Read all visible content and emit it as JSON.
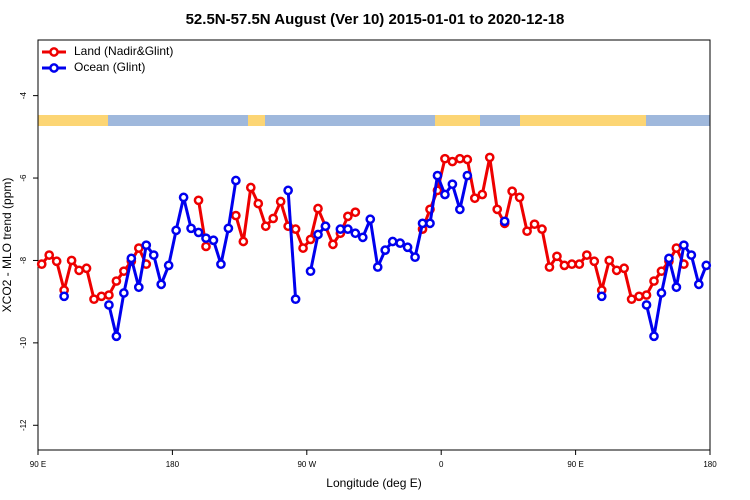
{
  "chart_data": {
    "type": "line",
    "title": "52.5N-57.5N August (Ver 10)   2015-01-01 to 2020-12-18",
    "x_label": "Longitude (deg E)",
    "y_label": "XCO2 - MLO trend (ppm)",
    "legend": "top-left",
    "xlim": [
      90,
      540
    ],
    "xticks": [
      {
        "value": 90,
        "label": "90 E"
      },
      180,
      {
        "value": 270,
        "label": "90 W"
      },
      {
        "value": 360,
        "label": "0"
      },
      {
        "value": 450,
        "label": "90 E"
      },
      {
        "value": 540,
        "label": "180"
      }
    ],
    "ylim": [
      -12.6,
      -2.65
    ],
    "yticks": [
      -4,
      -6,
      -8,
      -10,
      -12
    ],
    "x": [
      92.5,
      97.5,
      102.5,
      107.5,
      112.5,
      117.5,
      122.5,
      127.5,
      132.5,
      137.5,
      142.5,
      147.5,
      152.5,
      157.5,
      162.5,
      167.5,
      172.5,
      177.5,
      182.5,
      187.5,
      192.5,
      197.5,
      202.5,
      207.5,
      212.5,
      217.5,
      222.5,
      227.5,
      232.5,
      237.5,
      242.5,
      247.5,
      252.5,
      257.5,
      262.5,
      267.5,
      272.5,
      277.5,
      282.5,
      287.5,
      292.5,
      297.5,
      302.5,
      307.5,
      312.5,
      317.5,
      322.5,
      327.5,
      332.5,
      337.5,
      342.5,
      347.5,
      352.5,
      357.5,
      362.5,
      367.5,
      372.5,
      377.5,
      382.5,
      387.5,
      392.5,
      397.5,
      402.5,
      407.5,
      412.5,
      417.5,
      422.5,
      427.5,
      432.5,
      437.5,
      442.5,
      447.5,
      452.5,
      457.5,
      462.5,
      467.5,
      472.5,
      477.5,
      482.5,
      487.5,
      492.5,
      497.5,
      502.5,
      507.5,
      512.5,
      517.5,
      522.5,
      527.5,
      532.5,
      537.5
    ],
    "series": [
      {
        "name": "Land (Nadir&Glint)",
        "color": "#ee0000",
        "values": [
          -8.09,
          -7.87,
          -8.02,
          -8.72,
          -8.0,
          -8.24,
          -8.19,
          -8.94,
          -8.87,
          -8.84,
          -8.5,
          -8.26,
          -8.02,
          -7.7,
          -8.09,
          null,
          null,
          null,
          null,
          null,
          null,
          -6.54,
          -7.66,
          null,
          null,
          null,
          -6.91,
          -7.54,
          -6.23,
          -6.62,
          -7.17,
          -6.98,
          -6.57,
          -7.17,
          -7.24,
          -7.7,
          -7.49,
          -6.74,
          -7.17,
          -7.61,
          -7.34,
          -6.93,
          -6.83,
          null,
          null,
          null,
          null,
          null,
          null,
          null,
          null,
          -7.24,
          -6.76,
          -6.3,
          -5.53,
          -5.6,
          -5.53,
          -5.55,
          -6.49,
          -6.4,
          -5.5,
          -6.76,
          -7.1,
          -6.32,
          -6.47,
          -7.29,
          -7.12,
          -7.24,
          -8.16,
          -7.9,
          -8.12,
          -8.09,
          -8.09,
          -7.87,
          -8.02,
          -8.72,
          -8.0,
          -8.24,
          -8.19,
          -8.94,
          -8.87,
          -8.84,
          -8.5,
          -8.26,
          -8.02,
          -7.7,
          -8.09,
          null,
          null,
          null
        ]
      },
      {
        "name": "Ocean (Glint)",
        "color": "#0000ee",
        "values": [
          null,
          null,
          null,
          -8.87,
          null,
          null,
          null,
          null,
          null,
          -9.08,
          -9.84,
          -8.79,
          -7.95,
          -8.65,
          -7.63,
          -7.87,
          -8.58,
          -8.12,
          -7.27,
          -6.47,
          -7.22,
          -7.32,
          -7.46,
          -7.51,
          -8.09,
          -7.22,
          -6.06,
          null,
          null,
          null,
          null,
          null,
          null,
          -6.3,
          -8.94,
          null,
          -8.26,
          -7.37,
          -7.17,
          null,
          -7.24,
          -7.24,
          -7.34,
          -7.44,
          -7.0,
          -8.16,
          -7.75,
          -7.54,
          -7.58,
          -7.68,
          -7.92,
          -7.1,
          -7.1,
          -5.94,
          -6.4,
          -6.15,
          -6.76,
          -5.94,
          null,
          null,
          null,
          null,
          -7.05,
          null,
          null,
          null,
          null,
          null,
          null,
          null,
          null,
          null,
          null,
          null,
          null,
          -8.87,
          null,
          null,
          null,
          null,
          null,
          -9.08,
          -9.84,
          -8.79,
          -7.95,
          -8.65,
          -7.63,
          -7.87,
          -8.58,
          -8.12
        ]
      }
    ]
  }
}
